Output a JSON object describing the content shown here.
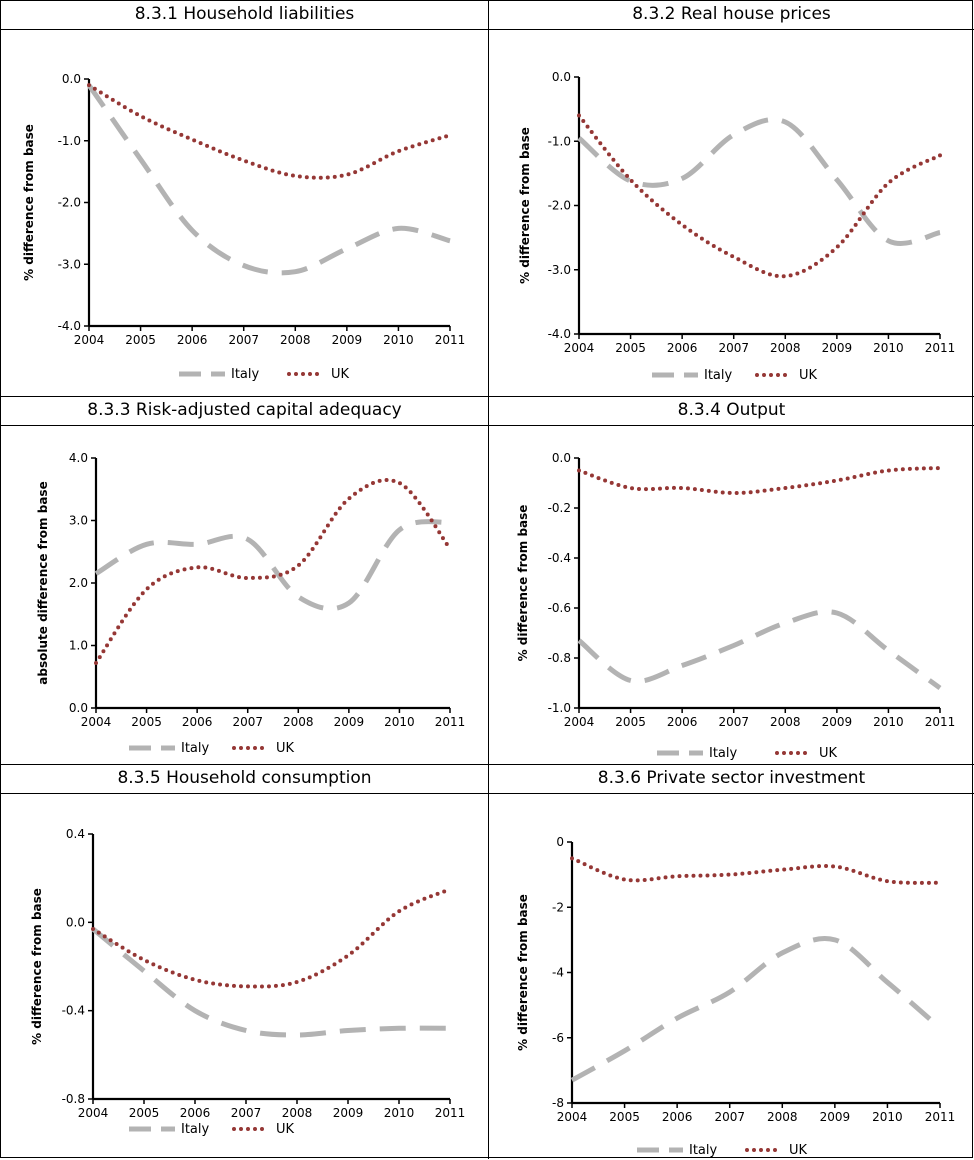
{
  "legend": {
    "italy": "Italy",
    "uk": "UK"
  },
  "colors": {
    "italy": "#b3b3b3",
    "uk": "#953735",
    "axis": "#000000"
  },
  "chart_data": [
    {
      "type": "line",
      "title": "8.3.1 Household liabilities",
      "ylabel": "% difference from base",
      "x": [
        2004,
        2005,
        2006,
        2007,
        2008,
        2009,
        2010,
        2011
      ],
      "ylim": [
        -4.0,
        0.0
      ],
      "yticks": [
        "0.0",
        "-1.0",
        "-2.0",
        "-3.0",
        "-4.0"
      ],
      "series": [
        {
          "name": "Italy",
          "values": [
            -0.1,
            -1.3,
            -2.45,
            -3.02,
            -3.12,
            -2.75,
            -2.42,
            -2.62
          ]
        },
        {
          "name": "UK",
          "values": [
            -0.1,
            -0.6,
            -0.98,
            -1.32,
            -1.57,
            -1.55,
            -1.17,
            -0.91
          ]
        }
      ]
    },
    {
      "type": "line",
      "title": "8.3.2 Real house prices",
      "ylabel": "% difference from base",
      "x": [
        2004,
        2005,
        2006,
        2007,
        2008,
        2009,
        2010,
        2011
      ],
      "ylim": [
        -4.0,
        0.0
      ],
      "yticks": [
        "0.0",
        "-1.0",
        "-2.0",
        "-3.0",
        "-4.0"
      ],
      "series": [
        {
          "name": "Italy",
          "values": [
            -0.95,
            -1.62,
            -1.58,
            -0.9,
            -0.7,
            -1.6,
            -2.55,
            -2.42
          ]
        },
        {
          "name": "UK",
          "values": [
            -0.6,
            -1.6,
            -2.3,
            -2.8,
            -3.1,
            -2.65,
            -1.65,
            -1.22
          ]
        }
      ]
    },
    {
      "type": "line",
      "title": "8.3.3 Risk-adjusted capital adequacy",
      "ylabel": "absolute difference from base",
      "x": [
        2004,
        2005,
        2006,
        2007,
        2008,
        2009,
        2010,
        2011
      ],
      "ylim": [
        0.0,
        4.0
      ],
      "yticks": [
        "4.0",
        "3.0",
        "2.0",
        "1.0",
        "0.0"
      ],
      "series": [
        {
          "name": "Italy",
          "values": [
            2.15,
            2.62,
            2.62,
            2.7,
            1.78,
            1.68,
            2.85,
            2.97
          ]
        },
        {
          "name": "UK",
          "values": [
            0.72,
            1.9,
            2.25,
            2.08,
            2.28,
            3.35,
            3.6,
            2.55
          ]
        }
      ]
    },
    {
      "type": "line",
      "title": "8.3.4 Output",
      "ylabel": "% difference from base",
      "x": [
        2004,
        2005,
        2006,
        2007,
        2008,
        2009,
        2010,
        2011
      ],
      "ylim": [
        -1.0,
        0.0
      ],
      "yticks": [
        "0.0",
        "-0.2",
        "-0.4",
        "-0.6",
        "-0.8",
        "-1.0"
      ],
      "series": [
        {
          "name": "Italy",
          "values": [
            -0.73,
            -0.89,
            -0.83,
            -0.75,
            -0.66,
            -0.62,
            -0.77,
            -0.92
          ]
        },
        {
          "name": "UK",
          "values": [
            -0.05,
            -0.12,
            -0.12,
            -0.14,
            -0.12,
            -0.09,
            -0.05,
            -0.04
          ]
        }
      ]
    },
    {
      "type": "line",
      "title": "8.3.5 Household consumption",
      "ylabel": "% difference from base",
      "x": [
        2004,
        2005,
        2006,
        2007,
        2008,
        2009,
        2010,
        2011
      ],
      "ylim": [
        -0.8,
        0.4
      ],
      "yticks": [
        "0.4",
        "0.0",
        "-0.4",
        "-0.8"
      ],
      "series": [
        {
          "name": "Italy",
          "values": [
            -0.03,
            -0.22,
            -0.4,
            -0.49,
            -0.51,
            -0.49,
            -0.48,
            -0.48
          ]
        },
        {
          "name": "UK",
          "values": [
            -0.03,
            -0.17,
            -0.26,
            -0.29,
            -0.27,
            -0.15,
            0.05,
            0.15
          ]
        }
      ]
    },
    {
      "type": "line",
      "title": "8.3.6 Private sector investment",
      "ylabel": "% difference from base",
      "x": [
        2004,
        2005,
        2006,
        2007,
        2008,
        2009,
        2010,
        2011
      ],
      "ylim": [
        -8,
        0
      ],
      "yticks": [
        "0",
        "-2",
        "-4",
        "-6",
        "-8"
      ],
      "series": [
        {
          "name": "Italy",
          "values": [
            -7.3,
            -6.4,
            -5.4,
            -4.6,
            -3.4,
            -3.0,
            -4.3,
            -5.7
          ]
        },
        {
          "name": "UK",
          "values": [
            -0.5,
            -1.15,
            -1.05,
            -1.0,
            -0.85,
            -0.75,
            -1.2,
            -1.25
          ]
        }
      ]
    }
  ]
}
